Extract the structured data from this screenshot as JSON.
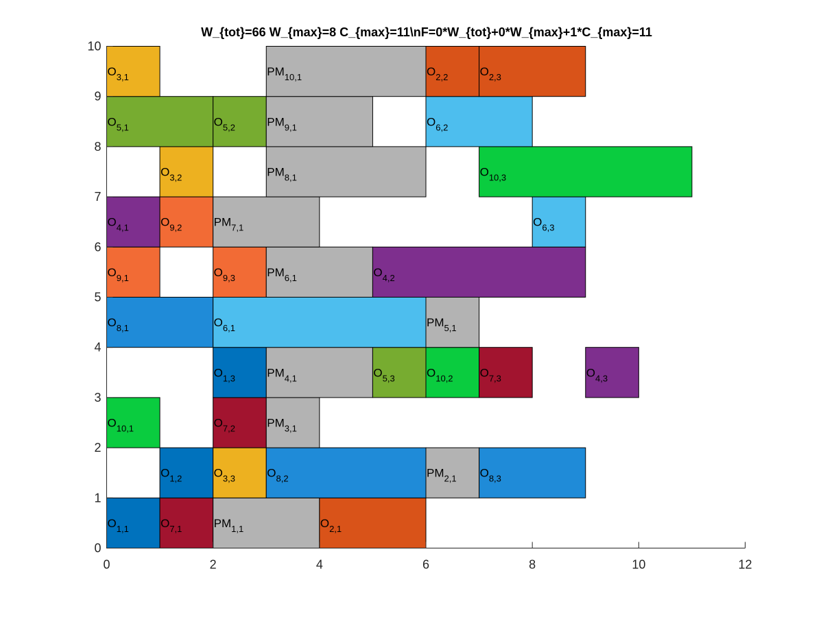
{
  "chart_data": {
    "type": "bar",
    "subtype": "gantt",
    "title": "W_{tot}=66  W_{max}=8  C_{max}=11\\nF=0*W_{tot}+0*W_{max}+1*C_{max}=11",
    "xlabel": "",
    "ylabel": "",
    "xlim": [
      0,
      12
    ],
    "ylim": [
      0,
      10
    ],
    "xticks": [
      0,
      2,
      4,
      6,
      8,
      10,
      12
    ],
    "yticks": [
      0,
      1,
      2,
      3,
      4,
      5,
      6,
      7,
      8,
      9,
      10
    ],
    "grid": false,
    "colors": {
      "J1": "#0072BD",
      "J2": "#D95319",
      "J3": "#EDB120",
      "J4": "#7E2F8E",
      "J5": "#77AC30",
      "J6": "#4DBEEE",
      "J7": "#A2142F",
      "J8": "#1F8BD8",
      "J9": "#F26B35",
      "J10": "#0ACC3F",
      "PM": "#B3B3B3"
    },
    "tasks": [
      {
        "machine": 1,
        "start": 0,
        "end": 1,
        "base": "O",
        "sub": "1,1",
        "color": "J1"
      },
      {
        "machine": 1,
        "start": 1,
        "end": 2,
        "base": "O",
        "sub": "7,1",
        "color": "J7"
      },
      {
        "machine": 1,
        "start": 2,
        "end": 4,
        "base": "PM",
        "sub": "1,1",
        "color": "PM"
      },
      {
        "machine": 1,
        "start": 4,
        "end": 6,
        "base": "O",
        "sub": "2,1",
        "color": "J2"
      },
      {
        "machine": 2,
        "start": 1,
        "end": 2,
        "base": "O",
        "sub": "1,2",
        "color": "J1"
      },
      {
        "machine": 2,
        "start": 2,
        "end": 3,
        "base": "O",
        "sub": "3,3",
        "color": "J3"
      },
      {
        "machine": 2,
        "start": 3,
        "end": 6,
        "base": "O",
        "sub": "8,2",
        "color": "J8"
      },
      {
        "machine": 2,
        "start": 6,
        "end": 7,
        "base": "PM",
        "sub": "2,1",
        "color": "PM"
      },
      {
        "machine": 2,
        "start": 7,
        "end": 9,
        "base": "O",
        "sub": "8,3",
        "color": "J8"
      },
      {
        "machine": 3,
        "start": 0,
        "end": 1,
        "base": "O",
        "sub": "10,1",
        "color": "J10"
      },
      {
        "machine": 3,
        "start": 2,
        "end": 3,
        "base": "O",
        "sub": "7,2",
        "color": "J7"
      },
      {
        "machine": 3,
        "start": 3,
        "end": 4,
        "base": "PM",
        "sub": "3,1",
        "color": "PM"
      },
      {
        "machine": 4,
        "start": 2,
        "end": 3,
        "base": "O",
        "sub": "1,3",
        "color": "J1"
      },
      {
        "machine": 4,
        "start": 3,
        "end": 5,
        "base": "PM",
        "sub": "4,1",
        "color": "PM"
      },
      {
        "machine": 4,
        "start": 5,
        "end": 6,
        "base": "O",
        "sub": "5,3",
        "color": "J5"
      },
      {
        "machine": 4,
        "start": 6,
        "end": 7,
        "base": "O",
        "sub": "10,2",
        "color": "J10"
      },
      {
        "machine": 4,
        "start": 7,
        "end": 8,
        "base": "O",
        "sub": "7,3",
        "color": "J7"
      },
      {
        "machine": 4,
        "start": 9,
        "end": 10,
        "base": "O",
        "sub": "4,3",
        "color": "J4"
      },
      {
        "machine": 5,
        "start": 0,
        "end": 2,
        "base": "O",
        "sub": "8,1",
        "color": "J8"
      },
      {
        "machine": 5,
        "start": 2,
        "end": 6,
        "base": "O",
        "sub": "6,1",
        "color": "J6"
      },
      {
        "machine": 5,
        "start": 6,
        "end": 7,
        "base": "PM",
        "sub": "5,1",
        "color": "PM"
      },
      {
        "machine": 6,
        "start": 0,
        "end": 1,
        "base": "O",
        "sub": "9,1",
        "color": "J9"
      },
      {
        "machine": 6,
        "start": 2,
        "end": 3,
        "base": "O",
        "sub": "9,3",
        "color": "J9"
      },
      {
        "machine": 6,
        "start": 3,
        "end": 5,
        "base": "PM",
        "sub": "6,1",
        "color": "PM"
      },
      {
        "machine": 6,
        "start": 5,
        "end": 9,
        "base": "O",
        "sub": "4,2",
        "color": "J4"
      },
      {
        "machine": 7,
        "start": 0,
        "end": 1,
        "base": "O",
        "sub": "4,1",
        "color": "J4"
      },
      {
        "machine": 7,
        "start": 1,
        "end": 2,
        "base": "O",
        "sub": "9,2",
        "color": "J9"
      },
      {
        "machine": 7,
        "start": 2,
        "end": 4,
        "base": "PM",
        "sub": "7,1",
        "color": "PM"
      },
      {
        "machine": 7,
        "start": 8,
        "end": 9,
        "base": "O",
        "sub": "6,3",
        "color": "J6"
      },
      {
        "machine": 8,
        "start": 1,
        "end": 2,
        "base": "O",
        "sub": "3,2",
        "color": "J3"
      },
      {
        "machine": 8,
        "start": 3,
        "end": 6,
        "base": "PM",
        "sub": "8,1",
        "color": "PM"
      },
      {
        "machine": 8,
        "start": 7,
        "end": 11,
        "base": "O",
        "sub": "10,3",
        "color": "J10"
      },
      {
        "machine": 9,
        "start": 0,
        "end": 2,
        "base": "O",
        "sub": "5,1",
        "color": "J5"
      },
      {
        "machine": 9,
        "start": 2,
        "end": 3,
        "base": "O",
        "sub": "5,2",
        "color": "J5"
      },
      {
        "machine": 9,
        "start": 3,
        "end": 5,
        "base": "PM",
        "sub": "9,1",
        "color": "PM"
      },
      {
        "machine": 9,
        "start": 6,
        "end": 8,
        "base": "O",
        "sub": "6,2",
        "color": "J6"
      },
      {
        "machine": 10,
        "start": 0,
        "end": 1,
        "base": "O",
        "sub": "3,1",
        "color": "J3"
      },
      {
        "machine": 10,
        "start": 3,
        "end": 6,
        "base": "PM",
        "sub": "10,1",
        "color": "PM"
      },
      {
        "machine": 10,
        "start": 6,
        "end": 7,
        "base": "O",
        "sub": "2,2",
        "color": "J2"
      },
      {
        "machine": 10,
        "start": 7,
        "end": 9,
        "base": "O",
        "sub": "2,3",
        "color": "J2"
      }
    ]
  }
}
